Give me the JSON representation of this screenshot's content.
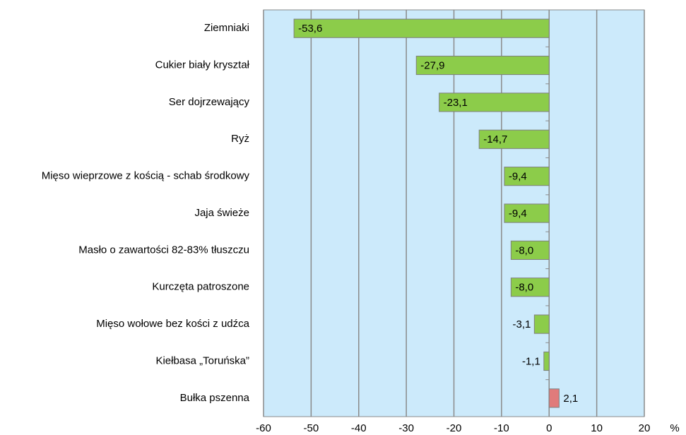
{
  "chart_data": {
    "type": "barh",
    "categories": [
      "Ziemniaki",
      "Cukier biały kryształ",
      "Ser dojrzewający ",
      "Ryż",
      "Mięso wieprzowe z kością - schab środkowy",
      "Jaja świeże",
      "Masło o zawartości 82-83% tłuszczu ",
      "Kurczęta patroszone",
      "Mięso wołowe bez kości z udźca",
      "Kiełbasa „Toruńska”",
      "Bułka pszenna"
    ],
    "values": [
      -53.6,
      -27.9,
      -23.1,
      -14.7,
      -9.4,
      -9.4,
      -8.0,
      -8.0,
      -3.1,
      -1.1,
      2.1
    ],
    "value_labels": [
      "-53,6",
      "-27,9",
      "-23,1",
      "-14,7",
      "-9,4",
      "-9,4",
      "-8,0",
      "-8,0",
      "-3,1",
      "-1,1",
      "2,1"
    ],
    "colors": [
      "#8ccc4a",
      "#8ccc4a",
      "#8ccc4a",
      "#8ccc4a",
      "#8ccc4a",
      "#8ccc4a",
      "#8ccc4a",
      "#8ccc4a",
      "#8ccc4a",
      "#8ccc4a",
      "#e07b7b"
    ],
    "xlabel": "%",
    "xlim": [
      -60,
      20
    ],
    "xticks": [
      -60,
      -50,
      -40,
      -30,
      -20,
      -10,
      0,
      10,
      20
    ],
    "grid": true
  }
}
